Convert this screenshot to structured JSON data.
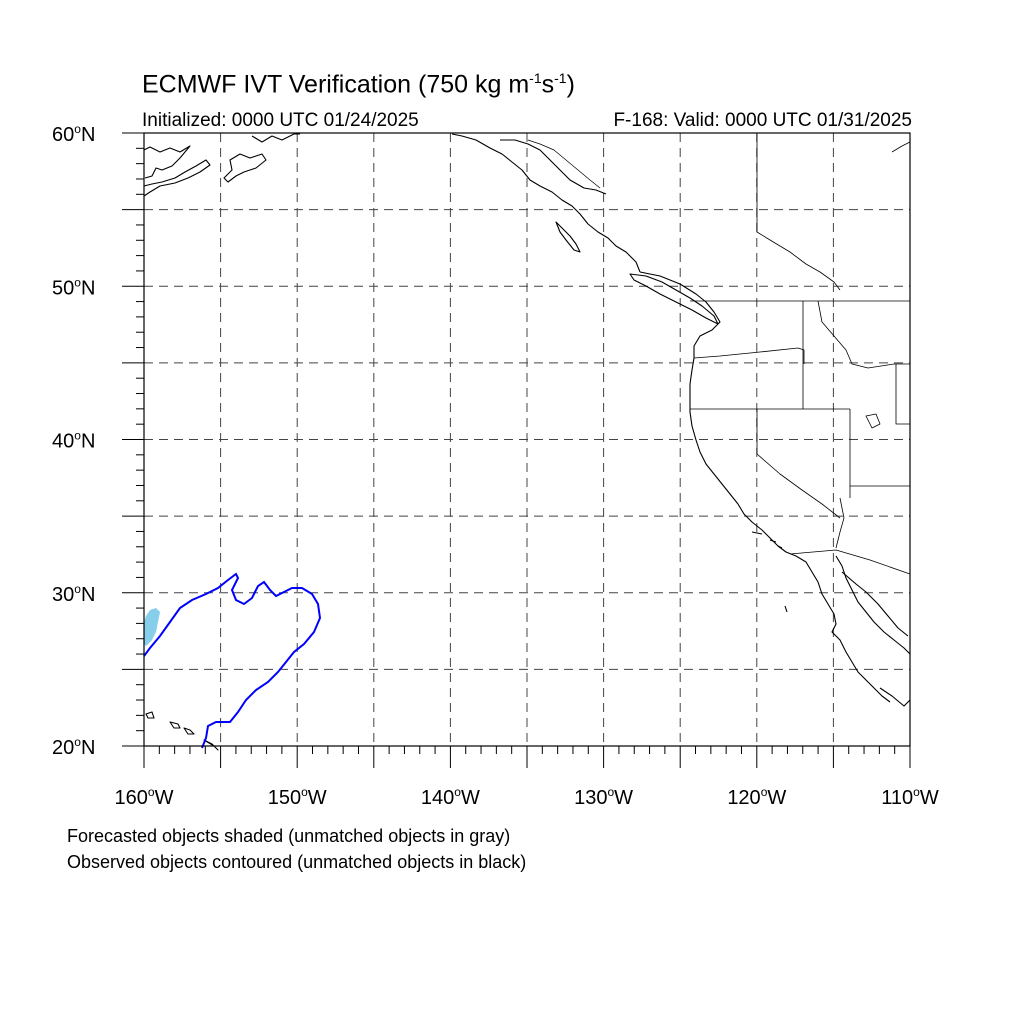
{
  "title": {
    "text": "ECMWF IVT Verification (750 kg m",
    "exp1": "-1",
    "mid": "s",
    "exp2": "-1",
    "end": ")"
  },
  "subtitle_left": "Initialized: 0000 UTC 01/24/2025",
  "subtitle_right": "F-168: Valid: 0000 UTC 01/31/2025",
  "lat_labels": [
    {
      "lat": 60,
      "num": "60",
      "hemi": "N"
    },
    {
      "lat": 50,
      "num": "50",
      "hemi": "N"
    },
    {
      "lat": 40,
      "num": "40",
      "hemi": "N"
    },
    {
      "lat": 30,
      "num": "30",
      "hemi": "N"
    },
    {
      "lat": 20,
      "num": "20",
      "hemi": "N"
    }
  ],
  "lon_labels": [
    {
      "lon": -160,
      "num": "160",
      "hemi": "W"
    },
    {
      "lon": -150,
      "num": "150",
      "hemi": "W"
    },
    {
      "lon": -140,
      "num": "140",
      "hemi": "W"
    },
    {
      "lon": -130,
      "num": "130",
      "hemi": "W"
    },
    {
      "lon": -120,
      "num": "120",
      "hemi": "W"
    },
    {
      "lon": -110,
      "num": "110",
      "hemi": "W"
    }
  ],
  "extent": {
    "lon_min": -160,
    "lon_max": -110,
    "lat_min": 20,
    "lat_max": 60
  },
  "colors": {
    "forecast_fill": "#87ceeb",
    "observed_contour": "#0000ff",
    "coastline": "#000000",
    "grid": "#444444"
  },
  "caption": {
    "line1": "Forecasted objects shaded (unmatched objects in gray)",
    "line2": "Observed objects contoured (unmatched objects in black)"
  }
}
